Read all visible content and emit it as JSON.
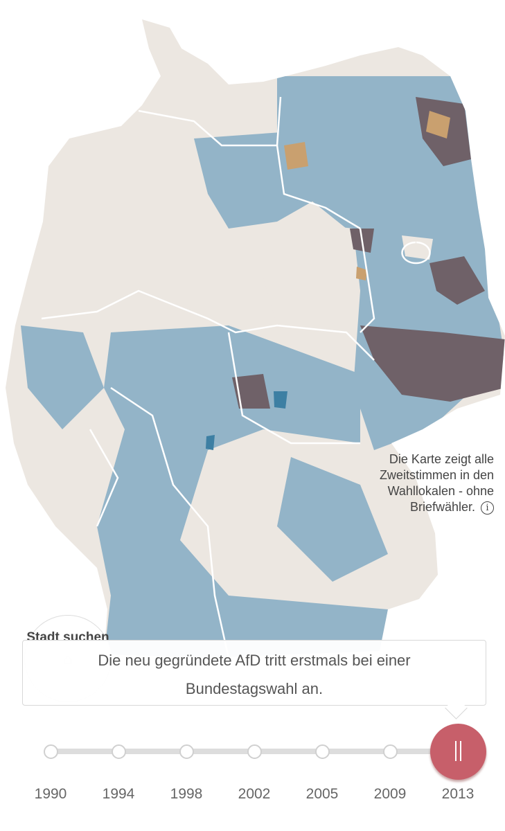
{
  "map": {
    "colors": {
      "land": "#ece7e1",
      "afd_low": "#93b4c8",
      "afd_mid": "#3d7fa3",
      "afd_high": "#6f6168",
      "afd_orange": "#c9a06f",
      "border": "#ffffff"
    },
    "note": "Die Karte zeigt alle Zweitstimmen in den Wahllokalen - ohne Briefwähler.",
    "info_icon": "info-icon"
  },
  "city_search": {
    "label": "Stadt suchen",
    "icon": "home-icon"
  },
  "tooltip": {
    "text": "Die neu gegründete AfD tritt erstmals bei einer Bundestagswahl an."
  },
  "timeline": {
    "years": [
      "1990",
      "1994",
      "1998",
      "2002",
      "2005",
      "2009",
      "2013"
    ],
    "selected": "2013",
    "accent": "#c75f6a",
    "thumb_icon": "pause-icon"
  }
}
